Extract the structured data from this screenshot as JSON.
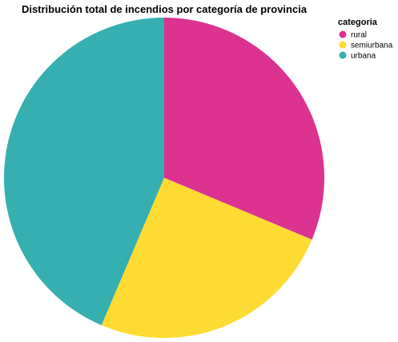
{
  "chart_data": {
    "type": "pie",
    "title": "Distribución total de incendios por categoría de provincia",
    "legend_title": "categoria",
    "legend_position": "top-right",
    "categories": [
      "rural",
      "semiurbana",
      "urbana"
    ],
    "values": [
      31.3,
      25.1,
      43.6
    ],
    "colors": [
      "#dc3391",
      "#fddb32",
      "#35afaf"
    ]
  }
}
